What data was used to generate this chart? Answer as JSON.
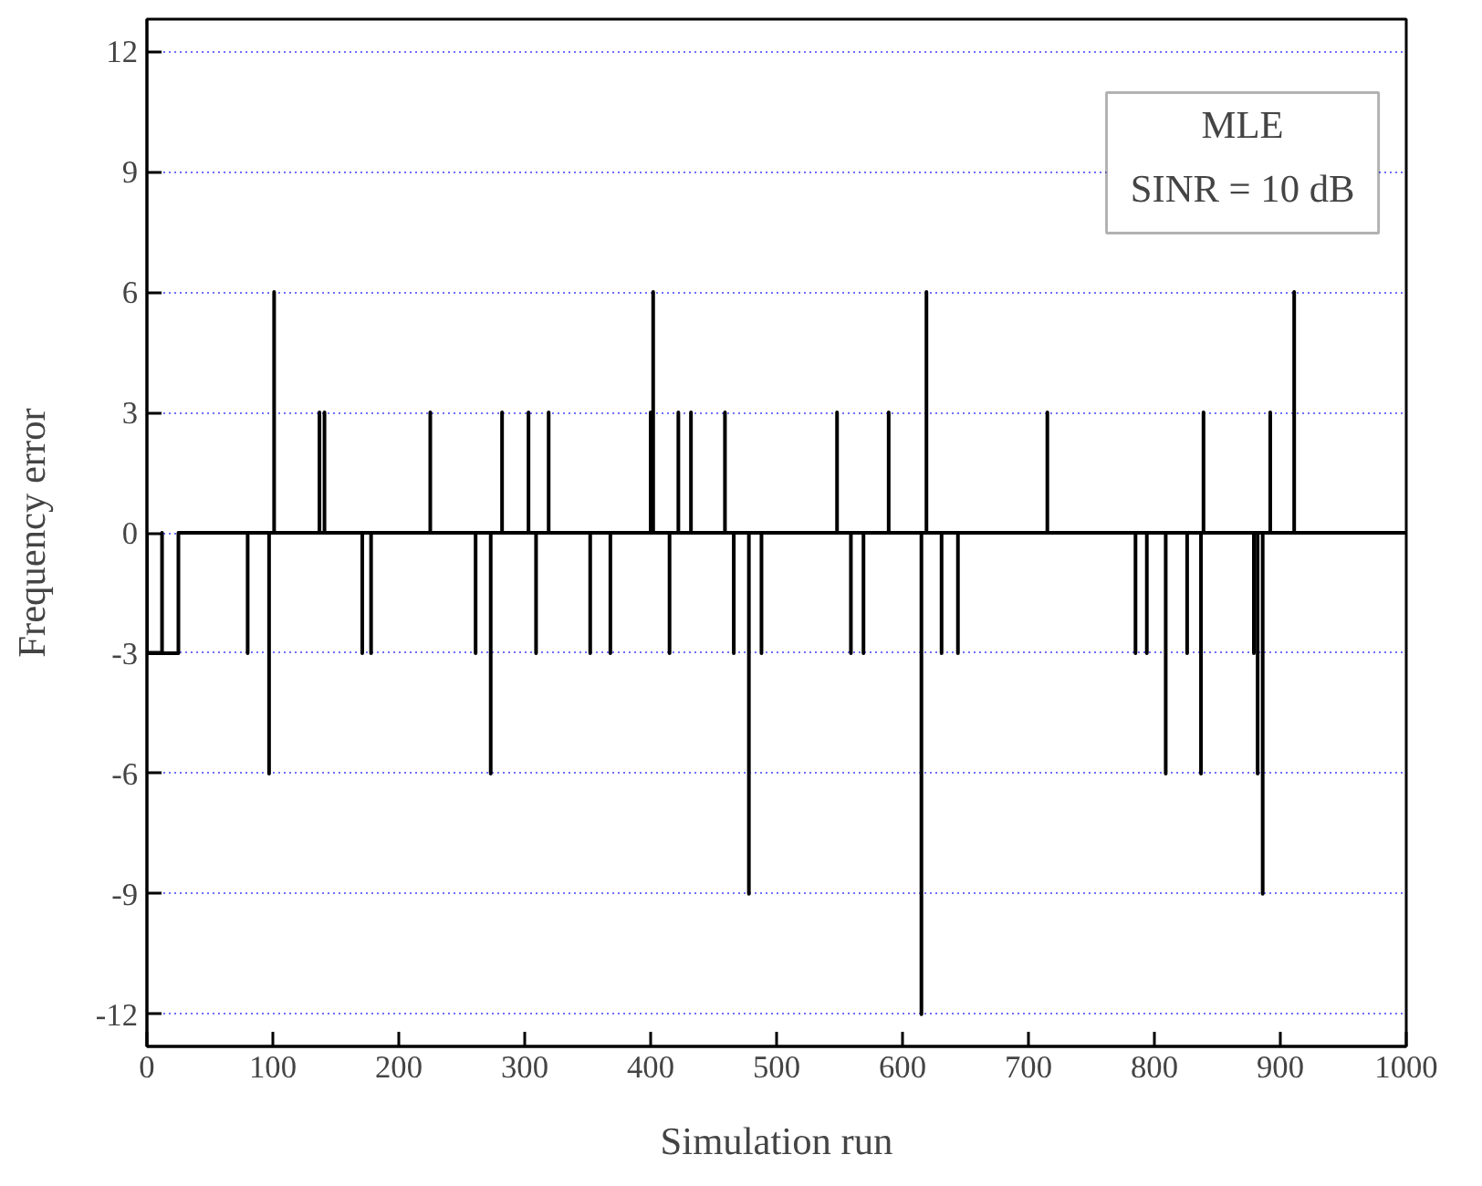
{
  "chart_data": {
    "type": "line",
    "xlabel": "Simulation run",
    "ylabel": "Frequency error",
    "annotations": [
      "MLE",
      "SINR = 10 dB"
    ],
    "xlim": [
      0,
      1000
    ],
    "xticks": [
      0,
      100,
      200,
      300,
      400,
      500,
      600,
      700,
      800,
      900,
      1000
    ],
    "ylim": [
      -12.8,
      12.8
    ],
    "yticks": [
      -12,
      -9,
      -6,
      -3,
      0,
      3,
      6,
      9,
      12
    ],
    "grid": "y",
    "line_style": "solid",
    "marker": "none",
    "series": [
      {
        "color": "#000000",
        "x": [
          0,
          0,
          12,
          12,
          12,
          25,
          25,
          80,
          80,
          80,
          97,
          97,
          97,
          101,
          101,
          101,
          137,
          137,
          137,
          141,
          141,
          141,
          171,
          171,
          171,
          178,
          178,
          178,
          225,
          225,
          225,
          261,
          261,
          261,
          273,
          273,
          273,
          282,
          282,
          282,
          303,
          303,
          303,
          309,
          309,
          309,
          319,
          319,
          319,
          352,
          352,
          352,
          368,
          368,
          368,
          400,
          400,
          400,
          402,
          402,
          402,
          415,
          415,
          415,
          422,
          422,
          422,
          432,
          432,
          432,
          459,
          459,
          459,
          466,
          466,
          466,
          478,
          478,
          478,
          488,
          488,
          488,
          548,
          548,
          548,
          559,
          559,
          559,
          569,
          569,
          569,
          589,
          589,
          589,
          615,
          615,
          615,
          619,
          619,
          619,
          631,
          631,
          631,
          644,
          644,
          644,
          715,
          715,
          715,
          785,
          785,
          785,
          794,
          794,
          794,
          809,
          809,
          809,
          826,
          826,
          826,
          837,
          837,
          837,
          839,
          839,
          839,
          879,
          879,
          879,
          882,
          882,
          882,
          886,
          886,
          886,
          892,
          892,
          892,
          911,
          911,
          911,
          1000
        ],
        "values": [
          0,
          -3,
          -3,
          0,
          -3,
          -3,
          0,
          0,
          -3,
          0,
          0,
          -6,
          0,
          0,
          6,
          0,
          0,
          3,
          0,
          0,
          3,
          0,
          0,
          -3,
          0,
          0,
          -3,
          0,
          0,
          3,
          0,
          0,
          -3,
          0,
          0,
          -6,
          0,
          0,
          3,
          0,
          0,
          3,
          0,
          0,
          -3,
          0,
          0,
          3,
          0,
          0,
          -3,
          0,
          0,
          -3,
          0,
          0,
          3,
          0,
          0,
          6,
          0,
          0,
          -3,
          0,
          0,
          3,
          0,
          0,
          3,
          0,
          0,
          3,
          0,
          0,
          -3,
          0,
          0,
          -9,
          0,
          0,
          -3,
          0,
          0,
          3,
          0,
          0,
          -3,
          0,
          0,
          -3,
          0,
          0,
          3,
          0,
          0,
          -12,
          0,
          0,
          6,
          0,
          0,
          -3,
          0,
          0,
          -3,
          0,
          0,
          3,
          0,
          0,
          -3,
          0,
          0,
          -3,
          0,
          0,
          -6,
          0,
          0,
          -3,
          0,
          0,
          -6,
          0,
          0,
          3,
          0,
          0,
          -3,
          0,
          0,
          -6,
          0,
          0,
          -9,
          0,
          0,
          3,
          0,
          0,
          6,
          0,
          0
        ]
      }
    ]
  }
}
